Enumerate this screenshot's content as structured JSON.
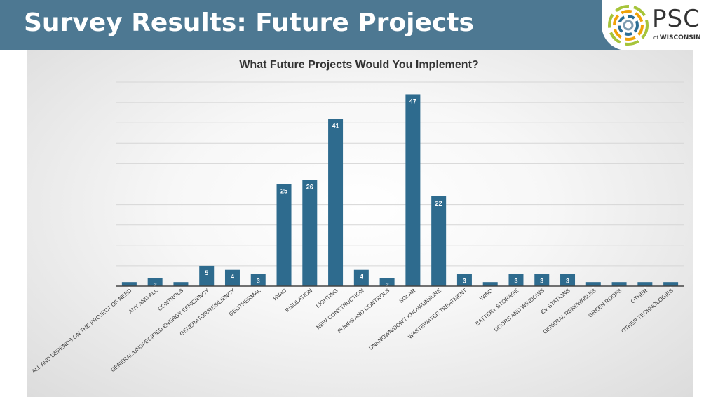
{
  "header": {
    "title": "Survey Results: Future Projects",
    "logo": {
      "name": "PSC",
      "sub_prefix": "of",
      "sub_name": "WISCONSIN"
    }
  },
  "colors": {
    "header_bg": "#4d7892",
    "bar": "#2e6b8e",
    "label_on_bar": "#ffffff"
  },
  "chart_data": {
    "type": "bar",
    "title": "What Future Projects Would You Implement?",
    "xlabel": "",
    "ylabel": "",
    "ylim": [
      0,
      50
    ],
    "grid": true,
    "legend": "none",
    "categories": [
      "ALL AND DEPENDS ON THE PROJECT OF NEED",
      "ANY AND ALL",
      "CONTROLS",
      "GENERAL/UNSPECIFIED ENERGY EFFICIENCY",
      "GENERATOR/RESILIENCY",
      "GEOTHERMAL",
      "HVAC",
      "INSULATION",
      "LIGHTING",
      "NEW CONSTRUCTION",
      "PUMPS AND CONTROLS",
      "SOLAR",
      "UNKNOWN/DON'T KNOW/UNSURE",
      "WASTEWATER TREATMENT",
      "WIND",
      "BATTERY STORAGE",
      "DOORS AND WINDOWS",
      "EV STATIONS",
      "GENERAL RENEWABLES",
      "GREEN ROOFS",
      "OTHER",
      "OTHER TECHNOLOGIES"
    ],
    "values": [
      1,
      2,
      1,
      5,
      4,
      3,
      25,
      26,
      41,
      4,
      2,
      47,
      22,
      3,
      1,
      3,
      3,
      3,
      1,
      1,
      1,
      1
    ],
    "data_labels": [
      "1",
      "2",
      "",
      "5",
      "4",
      "3",
      "25",
      "26",
      "41",
      "4",
      "2",
      "47",
      "22",
      "3",
      "",
      "3",
      "3",
      "3",
      "1",
      "1",
      "1",
      "1"
    ]
  }
}
